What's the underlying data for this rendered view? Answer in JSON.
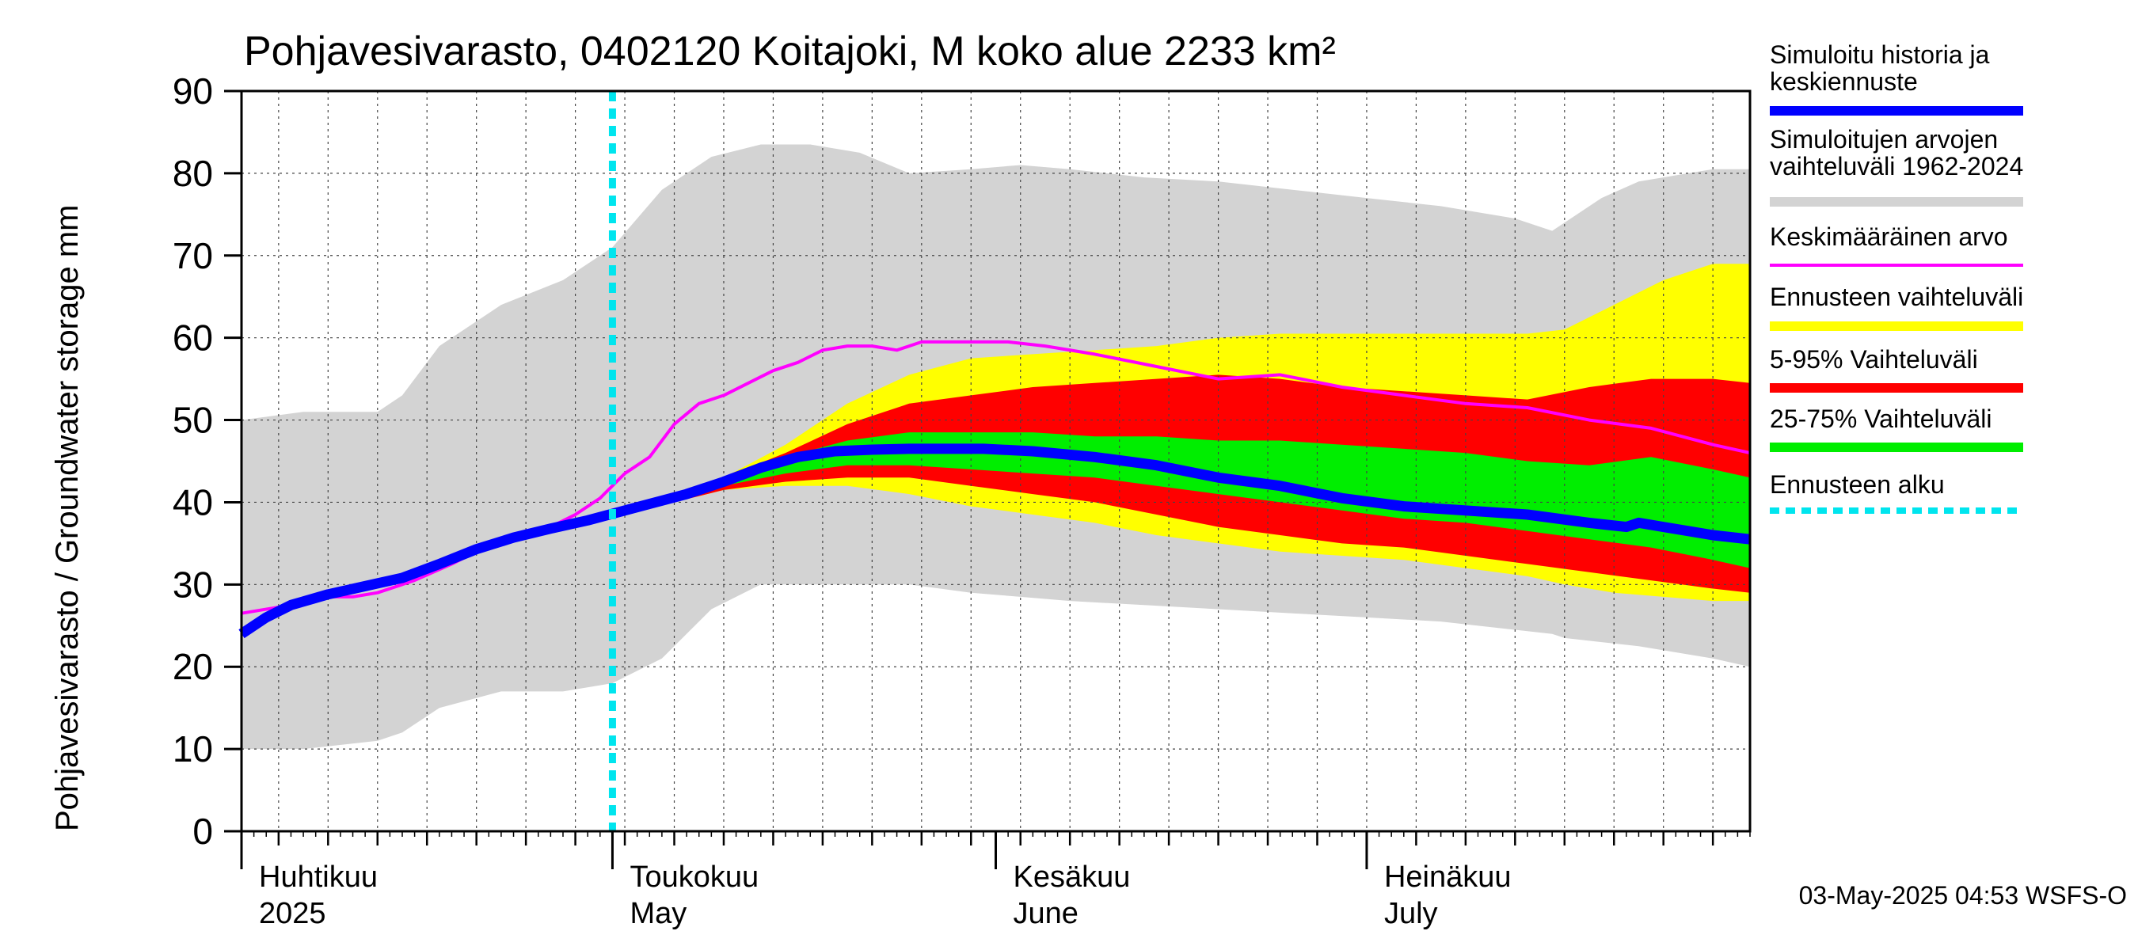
{
  "chart_data": {
    "type": "area",
    "title": "Pohjavesivarasto, 0402120 Koitajoki, M koko alue 2233 km²",
    "ylabel": "Pohjavesivarasto / Groundwater storage   mm",
    "ylim": [
      0,
      90
    ],
    "yticks": [
      0,
      10,
      20,
      30,
      40,
      50,
      60,
      70,
      80,
      90
    ],
    "x_unit": "day of year 2025",
    "xlim": [
      91,
      213
    ],
    "months": [
      {
        "start_day": 91,
        "fi": "Huhtikuu",
        "en": "2025"
      },
      {
        "start_day": 121,
        "fi": "Toukokuu",
        "en": "May"
      },
      {
        "start_day": 152,
        "fi": "Kesäkuu",
        "en": "June"
      },
      {
        "start_day": 182,
        "fi": "Heinäkuu",
        "en": "July"
      }
    ],
    "forecast_start_day": 121,
    "series": [
      {
        "name": "Simuloitujen arvojen vaihteluväli 1962-2024",
        "kind": "band",
        "color": "#d3d3d3",
        "x": [
          91,
          96,
          102,
          104,
          107,
          112,
          117,
          121,
          125,
          129,
          133,
          137,
          141,
          145,
          150,
          154,
          158,
          164,
          170,
          176,
          182,
          188,
          194,
          197,
          198,
          201,
          204,
          210,
          213
        ],
        "low": [
          10,
          10,
          11,
          12,
          15,
          17,
          17,
          18,
          21,
          27,
          30,
          30,
          30,
          30,
          29,
          28.5,
          28,
          27.5,
          27,
          26.5,
          26,
          25.5,
          24.5,
          24,
          23.5,
          23,
          22.5,
          21,
          20
        ],
        "high": [
          50,
          51,
          51,
          53,
          59,
          64,
          67,
          71,
          78,
          82,
          83.5,
          83.5,
          82.5,
          80,
          80.5,
          81,
          80.5,
          79.5,
          79,
          78,
          77,
          76,
          74.5,
          73,
          74,
          77,
          79,
          80.5,
          80.5
        ]
      },
      {
        "name": "Ennusteen vaihteluväli",
        "kind": "band",
        "color": "#ffff00",
        "x": [
          121,
          126,
          130,
          135,
          140,
          145,
          150,
          155,
          160,
          165,
          170,
          175,
          180,
          185,
          190,
          195,
          198,
          202,
          206,
          210,
          213
        ],
        "low": [
          38.5,
          40,
          41.5,
          42,
          42,
          41,
          39.5,
          38.5,
          37.5,
          36,
          35,
          34,
          33.5,
          33,
          32,
          31,
          30,
          29,
          28.5,
          28,
          28
        ],
        "high": [
          38.5,
          40,
          43,
          47,
          52,
          55.5,
          57.5,
          58,
          58.5,
          59,
          60,
          60.5,
          60.5,
          60.5,
          60.5,
          60.5,
          61,
          64,
          67,
          69,
          69
        ]
      },
      {
        "name": "5-95% Vaihteluväli",
        "kind": "band",
        "color": "#ff0000",
        "x": [
          121,
          126,
          130,
          135,
          140,
          145,
          150,
          155,
          160,
          165,
          170,
          175,
          180,
          185,
          190,
          195,
          200,
          205,
          210,
          213
        ],
        "low": [
          38.5,
          40,
          41.5,
          42.5,
          43,
          43,
          42,
          41,
          40,
          38.5,
          37,
          36,
          35,
          34.5,
          33.5,
          32.5,
          31.5,
          30.5,
          29.5,
          29
        ],
        "high": [
          38.5,
          40,
          43,
          46,
          49.5,
          52,
          53,
          54,
          54.5,
          55,
          55.5,
          55,
          54,
          53.5,
          53,
          52.5,
          54,
          55,
          55,
          54.5
        ]
      },
      {
        "name": "25-75% Vaihteluväli",
        "kind": "band",
        "color": "#00ee00",
        "x": [
          121,
          126,
          130,
          135,
          140,
          145,
          150,
          155,
          160,
          165,
          170,
          175,
          180,
          185,
          190,
          195,
          200,
          205,
          210,
          213
        ],
        "low": [
          38.5,
          40,
          42,
          43.5,
          44.5,
          44.5,
          44,
          43.5,
          43,
          42,
          41,
          40,
          39,
          38,
          37.5,
          36.5,
          35.5,
          34.5,
          33,
          32
        ],
        "high": [
          38.5,
          40,
          43,
          45.5,
          47.5,
          48.5,
          48.5,
          48.5,
          48,
          48,
          47.5,
          47.5,
          47,
          46.5,
          46,
          45,
          44.5,
          45.5,
          44,
          43
        ]
      },
      {
        "name": "Keskimääräinen arvo",
        "kind": "line",
        "color": "#ff00ff",
        "x": [
          91,
          95,
          98,
          100,
          102,
          105,
          108,
          110,
          113,
          116,
          118,
          120,
          122,
          124,
          126,
          128,
          130,
          132,
          134,
          136,
          138,
          140,
          142,
          144,
          146,
          148,
          150,
          153,
          156,
          160,
          165,
          170,
          175,
          180,
          185,
          190,
          195,
          200,
          205,
          210,
          213
        ],
        "values": [
          26.5,
          27.5,
          28.5,
          28.5,
          29,
          30.5,
          32.5,
          34,
          36,
          37,
          38.5,
          40.5,
          43.5,
          45.5,
          49.5,
          52,
          53,
          54.5,
          56,
          57,
          58.5,
          59,
          59,
          58.5,
          59.5,
          59.5,
          59.5,
          59.5,
          59,
          58,
          56.5,
          55,
          55.5,
          54,
          53,
          52,
          51.5,
          50,
          49,
          47,
          46
        ]
      },
      {
        "name": "Simuloitu historia ja keskiennuste",
        "kind": "line",
        "color": "#0000ff",
        "x": [
          91,
          93,
          95,
          98,
          101,
          104,
          107,
          110,
          113,
          116,
          119,
          121,
          124,
          127,
          130,
          133,
          136,
          139,
          142,
          145,
          148,
          151,
          155,
          160,
          165,
          170,
          175,
          180,
          185,
          190,
          195,
          200,
          203,
          204,
          206,
          210,
          213
        ],
        "values": [
          24,
          26,
          27.5,
          28.8,
          29.8,
          30.8,
          32.5,
          34.3,
          35.7,
          36.8,
          37.8,
          38.6,
          39.8,
          41,
          42.5,
          44.2,
          45.5,
          46.2,
          46.4,
          46.5,
          46.5,
          46.5,
          46.2,
          45.5,
          44.5,
          43,
          42,
          40.5,
          39.5,
          39,
          38.5,
          37.5,
          37,
          37.5,
          37,
          36,
          35.5
        ]
      },
      {
        "name": "Ennusteen alku",
        "kind": "vline",
        "color": "#00e5ee",
        "x": 121
      }
    ]
  },
  "legend": [
    {
      "label_lines": [
        "Simuloitu historia ja",
        "keskiennuste"
      ],
      "color": "#0000ff",
      "style": "solid"
    },
    {
      "label_lines": [
        "Simuloitujen arvojen",
        "vaihteluväli 1962-2024"
      ],
      "color": "#d3d3d3",
      "style": "solid"
    },
    {
      "label_lines": [
        "Keskimääräinen arvo"
      ],
      "color": "#ff00ff",
      "style": "thin"
    },
    {
      "label_lines": [
        "Ennusteen vaihteluväli"
      ],
      "color": "#ffff00",
      "style": "solid"
    },
    {
      "label_lines": [
        "5-95% Vaihteluväli"
      ],
      "color": "#ff0000",
      "style": "solid"
    },
    {
      "label_lines": [
        "25-75% Vaihteluväli"
      ],
      "color": "#00ee00",
      "style": "solid"
    },
    {
      "label_lines": [
        "Ennusteen alku"
      ],
      "color": "#00e5ee",
      "style": "dotted"
    }
  ],
  "footer": "03-May-2025 04:53 WSFS-O"
}
